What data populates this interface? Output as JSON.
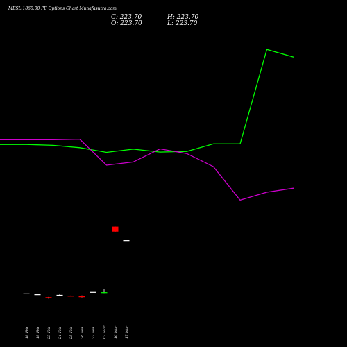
{
  "title": "MESL 1860.00 PE Options Chart Munafasutra.com",
  "ohlc": {
    "close": "C: 223.70",
    "high": "H: 223.70",
    "open": "O: 223.70",
    "low": "L: 223.70"
  },
  "colors": {
    "background": "#000000",
    "up": "#00ff00",
    "down": "#ff0000",
    "neutral": "#ffffff",
    "ma_fast": "#00ff00",
    "ma_slow": "#cc00cc"
  },
  "chart_data": {
    "type": "candlestick",
    "categories": [
      "18 Feb",
      "19 Feb",
      "23 Feb",
      "24 Feb",
      "25 Feb",
      "26 Feb",
      "27 Feb",
      "02 Mar",
      "16 Mar",
      "17 Mar"
    ],
    "candles": [
      {
        "date": "18 Feb",
        "open": 41,
        "high": 41,
        "low": 41,
        "close": 41
      },
      {
        "date": "19 Feb",
        "open": 38,
        "high": 38,
        "low": 38,
        "close": 38
      },
      {
        "date": "23 Feb",
        "open": 28,
        "high": 29,
        "low": 23,
        "close": 24
      },
      {
        "date": "24 Feb",
        "open": 36,
        "high": 38,
        "low": 34,
        "close": 36
      },
      {
        "date": "25 Feb",
        "open": 33,
        "high": 34,
        "low": 32,
        "close": 32
      },
      {
        "date": "26 Feb",
        "open": 32,
        "high": 34,
        "low": 27,
        "close": 28
      },
      {
        "date": "27 Feb",
        "open": 46,
        "high": 46,
        "low": 46,
        "close": 46
      },
      {
        "date": "02 Mar",
        "open": 43,
        "high": 57,
        "low": 42,
        "close": 45
      },
      {
        "date": "16 Mar",
        "open": 270,
        "high": 270,
        "low": 253,
        "close": 253
      },
      {
        "date": "17 Mar",
        "open": 223.7,
        "high": 223.7,
        "low": 223.7,
        "close": 223.7
      }
    ],
    "series": [
      {
        "color": "#00ff00",
        "values": [
          [
            -1.5,
            552
          ],
          [
            0,
            552
          ],
          [
            1,
            549
          ],
          [
            2,
            541
          ],
          [
            3,
            525
          ],
          [
            4,
            536
          ],
          [
            5,
            526
          ],
          [
            6,
            528
          ],
          [
            7,
            554
          ],
          [
            8,
            554
          ],
          [
            9,
            878
          ],
          [
            10,
            852
          ]
        ]
      },
      {
        "color": "#cc00cc",
        "values": [
          [
            -1.5,
            568
          ],
          [
            0,
            568
          ],
          [
            1,
            568
          ],
          [
            2,
            570
          ],
          [
            3,
            481
          ],
          [
            4,
            492
          ],
          [
            5,
            537
          ],
          [
            6,
            521
          ],
          [
            7,
            476
          ],
          [
            8,
            361
          ],
          [
            9,
            388
          ],
          [
            10,
            402
          ]
        ]
      }
    ],
    "ylim": [
      0,
      1000
    ]
  }
}
